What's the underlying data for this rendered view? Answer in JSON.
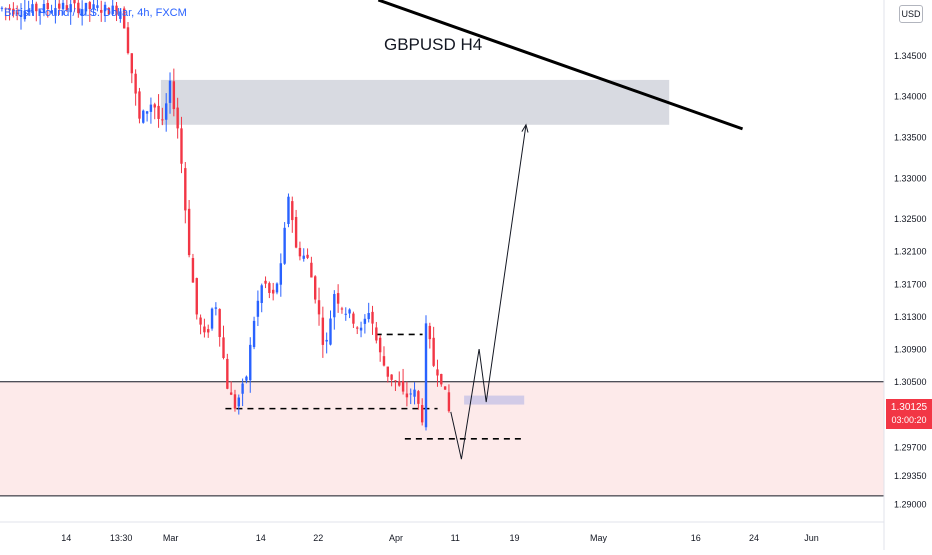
{
  "header": {
    "symbol_label": "British Pound / U.S. Dollar, 4h, FXCM",
    "title": "GBPUSD H4",
    "currency_badge": "USD"
  },
  "last_price": {
    "value": "1.30125",
    "countdown": "03:00:20",
    "color": "#f23645"
  },
  "colors": {
    "bull": "#2962ff",
    "bear": "#f23645",
    "support_zone_fill": "#fdeaea",
    "resistance_zone_fill": "#d1d4dc",
    "target_zone_fill": "#c7c3e6",
    "trendline": "#000000"
  },
  "chart_data": {
    "type": "candlestick",
    "title": "GBPUSD H4",
    "x_tick_labels": [
      "14",
      "13:30",
      "Mar",
      "14",
      "22",
      "Apr",
      "11",
      "19",
      "May",
      "16",
      "24",
      "Jun"
    ],
    "y_tick_labels": [
      "1.34500",
      "1.34000",
      "1.33500",
      "1.33000",
      "1.32500",
      "1.32100",
      "1.31700",
      "1.31300",
      "1.30900",
      "1.30500",
      "1.29700",
      "1.29350",
      "1.29000"
    ],
    "ylim": [
      1.2878,
      1.3518
    ],
    "price_path": [
      [
        0,
        1.3508
      ],
      [
        0.03,
        1.3505
      ],
      [
        0.07,
        1.351
      ],
      [
        0.1,
        1.3508
      ],
      [
        0.14,
        1.3506
      ],
      [
        0.16,
        1.337
      ],
      [
        0.175,
        1.3395
      ],
      [
        0.185,
        1.336
      ],
      [
        0.195,
        1.3415
      ],
      [
        0.205,
        1.335
      ],
      [
        0.215,
        1.322
      ],
      [
        0.225,
        1.313
      ],
      [
        0.235,
        1.31
      ],
      [
        0.245,
        1.3155
      ],
      [
        0.26,
        1.304
      ],
      [
        0.268,
        1.302
      ],
      [
        0.28,
        1.305
      ],
      [
        0.29,
        1.313
      ],
      [
        0.3,
        1.3175
      ],
      [
        0.31,
        1.315
      ],
      [
        0.32,
        1.319
      ],
      [
        0.33,
        1.3295
      ],
      [
        0.335,
        1.3215
      ],
      [
        0.35,
        1.32
      ],
      [
        0.36,
        1.315
      ],
      [
        0.37,
        1.3085
      ],
      [
        0.38,
        1.316
      ],
      [
        0.39,
        1.314
      ],
      [
        0.4,
        1.313
      ],
      [
        0.41,
        1.311
      ],
      [
        0.42,
        1.314
      ],
      [
        0.43,
        1.309
      ],
      [
        0.44,
        1.306
      ],
      [
        0.45,
        1.305
      ],
      [
        0.46,
        1.303
      ],
      [
        0.47,
        1.304
      ],
      [
        0.48,
        1.3005
      ],
      [
        0.485,
        1.314
      ],
      [
        0.49,
        1.3075
      ],
      [
        0.5,
        1.306
      ],
      [
        0.51,
        1.3013
      ]
    ],
    "projection_path": [
      [
        0.51,
        1.3013
      ],
      [
        0.522,
        1.2955
      ],
      [
        0.542,
        1.309
      ],
      [
        0.55,
        1.3025
      ],
      [
        0.595,
        1.3365
      ]
    ],
    "horizontal_lines": [
      1.305,
      1.291
    ],
    "support_zone": {
      "from": 1.305,
      "to": 1.291
    },
    "resistance_zone": {
      "x_from": 0.182,
      "x_to": 0.757,
      "from": 1.342,
      "to": 1.3365
    },
    "target_zone": {
      "x_from": 0.525,
      "x_to": 0.593,
      "from": 1.3033,
      "to": 1.3022
    },
    "dashed_levels": [
      {
        "x_from": 0.255,
        "x_to": 0.495,
        "value": 1.3017
      },
      {
        "x_from": 0.425,
        "x_to": 0.478,
        "value": 1.3108
      },
      {
        "x_from": 0.458,
        "x_to": 0.593,
        "value": 1.298
      }
    ],
    "trendline": {
      "start": [
        0.428,
        1.3518
      ],
      "end": [
        0.84,
        1.336
      ]
    }
  }
}
